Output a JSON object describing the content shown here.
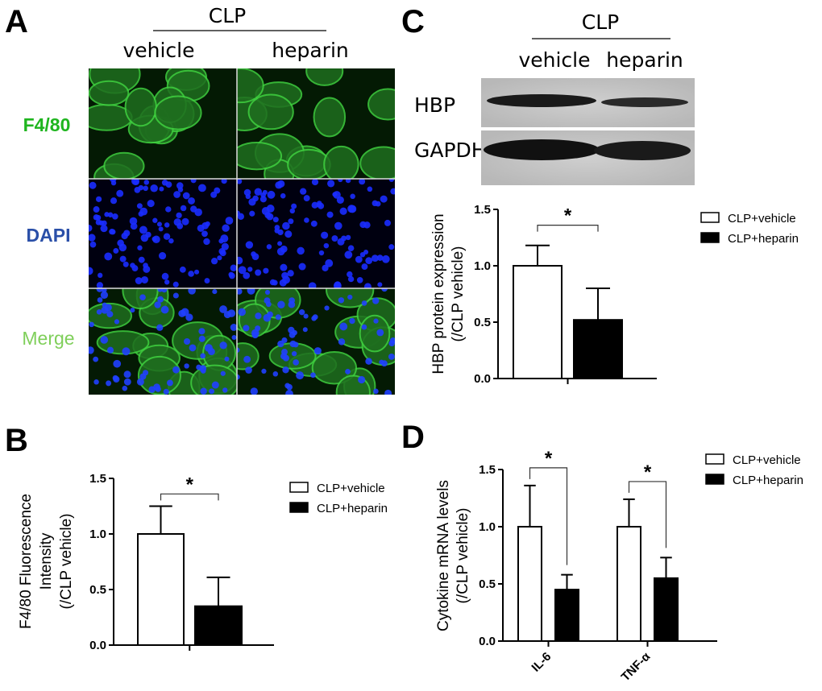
{
  "panels": {
    "a": "A",
    "b": "B",
    "c": "C",
    "d": "D"
  },
  "panel_a": {
    "group_label": "CLP",
    "columns": [
      "vehicle",
      "heparin"
    ],
    "rows": [
      {
        "label": "F4/80",
        "color": "#1fb51f"
      },
      {
        "label": "DAPI",
        "color": "#2a4fa8"
      },
      {
        "label": "Merge",
        "color": "#7fcf5a"
      }
    ]
  },
  "panel_c_blot": {
    "group_label": "CLP",
    "columns": [
      "vehicle",
      "heparin"
    ],
    "bands": [
      "HBP",
      "GAPDH"
    ]
  },
  "legend": {
    "vehicle": "CLP+vehicle",
    "heparin": "CLP+heparin"
  },
  "chart_data": [
    {
      "panel": "B",
      "type": "bar",
      "ylabel": [
        "F4/80 Fluorescence",
        "Intensity",
        "(/CLP vehicle)"
      ],
      "ylim": [
        0,
        1.5
      ],
      "yticks": [
        "0.0",
        "0.5",
        "1.0",
        "1.5"
      ],
      "categories": [
        ""
      ],
      "series": [
        {
          "name": "CLP+vehicle",
          "values": [
            1.0
          ],
          "error": [
            0.25
          ]
        },
        {
          "name": "CLP+heparin",
          "values": [
            0.35
          ],
          "error": [
            0.26
          ]
        }
      ],
      "significance": [
        "*"
      ]
    },
    {
      "panel": "C",
      "type": "bar",
      "ylabel": [
        "HBP protein expression",
        "(/CLP vehicle)"
      ],
      "ylim": [
        0,
        1.5
      ],
      "yticks": [
        "0.0",
        "0.5",
        "1.0",
        "1.5"
      ],
      "categories": [
        ""
      ],
      "series": [
        {
          "name": "CLP+vehicle",
          "values": [
            1.0
          ],
          "error": [
            0.18
          ]
        },
        {
          "name": "CLP+heparin",
          "values": [
            0.52
          ],
          "error": [
            0.28
          ]
        }
      ],
      "significance": [
        "*"
      ]
    },
    {
      "panel": "D",
      "type": "bar",
      "ylabel": [
        "Cytokine mRNA levels",
        "(/CLP vehicle)"
      ],
      "ylim": [
        0,
        1.5
      ],
      "yticks": [
        "0.0",
        "0.5",
        "1.0",
        "1.5"
      ],
      "categories": [
        "IL-6",
        "TNF-α"
      ],
      "series": [
        {
          "name": "CLP+vehicle",
          "values": [
            1.0,
            1.0
          ],
          "error": [
            0.36,
            0.24
          ]
        },
        {
          "name": "CLP+heparin",
          "values": [
            0.45,
            0.55
          ],
          "error": [
            0.13,
            0.18
          ]
        }
      ],
      "significance": [
        "*",
        "*"
      ]
    }
  ]
}
